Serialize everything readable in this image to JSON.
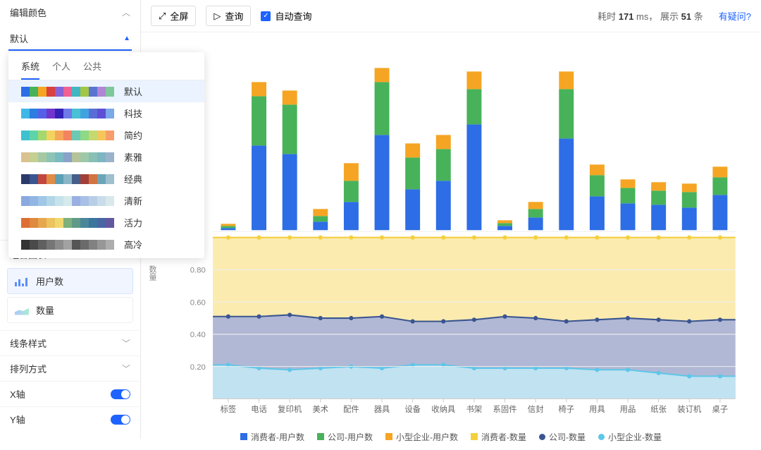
{
  "sidebar": {
    "edit_color": "编辑颜色",
    "dropdown_value": "默认",
    "combo_title": "组合图表",
    "combo_items": [
      {
        "label": "用户数",
        "selected": true,
        "icon": "bars"
      },
      {
        "label": "数量",
        "selected": false,
        "icon": "line"
      }
    ],
    "line_style": "线条样式",
    "sort": "排列方式",
    "x_axis": "X轴",
    "y_axis": "Y轴"
  },
  "popover": {
    "tabs": [
      {
        "label": "系统",
        "active": true
      },
      {
        "label": "个人",
        "active": false
      },
      {
        "label": "公共",
        "active": false
      }
    ],
    "palettes": [
      {
        "label": "默认",
        "colors": [
          "#2d6de5",
          "#47b259",
          "#f5a523",
          "#d94040",
          "#8663d6",
          "#f06292",
          "#42b6c4",
          "#a3c644",
          "#5a75d1",
          "#b085d8",
          "#7fc89c"
        ],
        "active": true
      },
      {
        "label": "科技",
        "colors": [
          "#3fb8e8",
          "#2b7de0",
          "#5560e8",
          "#7035cc",
          "#3322b8",
          "#6f79e8",
          "#4ac0d4",
          "#3fa3e0",
          "#5a6dd6",
          "#5e4fd6",
          "#7aa8e8"
        ],
        "active": false
      },
      {
        "label": "简约",
        "colors": [
          "#3fc1d0",
          "#5fd4a8",
          "#a3d96f",
          "#f3d35f",
          "#f7a75a",
          "#f2845f",
          "#6cc9b3",
          "#8ed985",
          "#c5d96f",
          "#f5c65a",
          "#f79d6a"
        ],
        "active": false
      },
      {
        "label": "素雅",
        "colors": [
          "#d9c28f",
          "#c5cf92",
          "#a6c9a4",
          "#8ec4b5",
          "#7abac2",
          "#88a3c7",
          "#b5c29a",
          "#9ec9a9",
          "#88c0b3",
          "#7db6c0",
          "#9ab3cc"
        ],
        "active": false
      },
      {
        "label": "经典",
        "colors": [
          "#2a3b6b",
          "#3a5590",
          "#c0483e",
          "#e28b45",
          "#5b9fb5",
          "#8ab5c7",
          "#455f8a",
          "#a33f38",
          "#d07442",
          "#6ca5b8",
          "#9dbfce"
        ],
        "active": false
      },
      {
        "label": "清新",
        "colors": [
          "#8aa9e0",
          "#92b6e3",
          "#a0c7e6",
          "#b2d6e8",
          "#c6e2ea",
          "#d5eaec",
          "#9ab0e2",
          "#a8c0e5",
          "#b8cee7",
          "#c9dcea",
          "#d9e8eb"
        ],
        "active": false
      },
      {
        "label": "活力",
        "colors": [
          "#de6e35",
          "#e08940",
          "#e6a74e",
          "#ecc35e",
          "#f0d870",
          "#7db07a",
          "#5e9a87",
          "#4a8899",
          "#3a759e",
          "#4965a3",
          "#6258a0"
        ],
        "active": false
      },
      {
        "label": "高冷",
        "colors": [
          "#343434",
          "#4a4a4a",
          "#606060",
          "#767676",
          "#8c8c8c",
          "#a2a2a2",
          "#555555",
          "#6b6b6b",
          "#818181",
          "#979797",
          "#adadad"
        ],
        "active": false
      }
    ]
  },
  "toolbar": {
    "fullscreen": "全屏",
    "query": "查询",
    "auto_query": "自动查询",
    "time_label": "耗时",
    "time_value": "171",
    "time_unit": "ms，",
    "show_label": "展示",
    "show_value": "51",
    "show_unit": "条",
    "help": "有疑问?"
  },
  "chart": {
    "categories": [
      "标签",
      "电话",
      "复印机",
      "美术",
      "配件",
      "器具",
      "设备",
      "收纳具",
      "书架",
      "系固件",
      "信封",
      "椅子",
      "用具",
      "用品",
      "纸张",
      "装订机",
      "桌子"
    ],
    "bar_series": [
      {
        "name": "消费者-用户数",
        "color": "#2d6de5",
        "values": [
          3,
          120,
          108,
          12,
          40,
          135,
          58,
          70,
          150,
          6,
          18,
          130,
          48,
          38,
          36,
          32,
          50
        ]
      },
      {
        "name": "公司-用户数",
        "color": "#47b259",
        "values": [
          3,
          70,
          70,
          8,
          30,
          75,
          45,
          45,
          50,
          4,
          12,
          70,
          30,
          22,
          20,
          22,
          25
        ]
      },
      {
        "name": "小型企业-用户数",
        "color": "#f5a523",
        "values": [
          3,
          20,
          20,
          10,
          25,
          20,
          20,
          20,
          25,
          4,
          10,
          25,
          15,
          12,
          12,
          12,
          15
        ]
      }
    ],
    "bar_max": 260,
    "area_y_ticks": [
      0.2,
      0.4,
      0.6,
      0.8
    ],
    "area_y_label": "数量",
    "area_series": [
      {
        "name": "消费者-数量",
        "color": "#f4d03f",
        "fill": "#fbe9a6",
        "values": [
          1.0,
          1.0,
          1.0,
          1.0,
          1.0,
          1.0,
          1.0,
          1.0,
          1.0,
          1.0,
          1.0,
          1.0,
          1.0,
          1.0,
          1.0,
          1.0,
          1.0
        ]
      },
      {
        "name": "公司-数量",
        "color": "#3a5590",
        "fill": "#a9b3d9",
        "values": [
          0.51,
          0.51,
          0.52,
          0.5,
          0.5,
          0.51,
          0.48,
          0.48,
          0.49,
          0.51,
          0.5,
          0.48,
          0.49,
          0.5,
          0.49,
          0.48,
          0.49
        ]
      },
      {
        "name": "小型企业-数量",
        "color": "#5ec6e8",
        "fill": "#c3e7f4",
        "values": [
          0.21,
          0.19,
          0.18,
          0.19,
          0.2,
          0.19,
          0.21,
          0.21,
          0.19,
          0.19,
          0.19,
          0.19,
          0.18,
          0.18,
          0.16,
          0.14,
          0.14
        ]
      }
    ],
    "legend": [
      {
        "label": "消费者-用户数",
        "color": "#2d6de5",
        "shape": "square"
      },
      {
        "label": "公司-用户数",
        "color": "#47b259",
        "shape": "square"
      },
      {
        "label": "小型企业-用户数",
        "color": "#f5a523",
        "shape": "square"
      },
      {
        "label": "消费者-数量",
        "color": "#f4d03f",
        "shape": "square"
      },
      {
        "label": "公司-数量",
        "color": "#3a5590",
        "shape": "circle"
      },
      {
        "label": "小型企业-数量",
        "color": "#5ec6e8",
        "shape": "circle"
      }
    ]
  }
}
